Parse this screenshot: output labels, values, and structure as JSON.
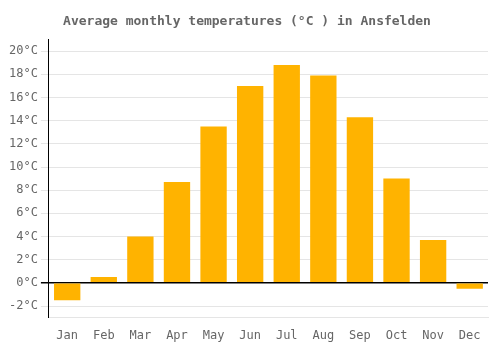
{
  "chart_data": {
    "type": "bar",
    "title": "Average monthly temperatures (°C ) in Ansfelden",
    "categories": [
      "Jan",
      "Feb",
      "Mar",
      "Apr",
      "May",
      "Jun",
      "Jul",
      "Aug",
      "Sep",
      "Oct",
      "Nov",
      "Dec"
    ],
    "values": [
      -1.5,
      0.5,
      4.0,
      8.7,
      13.5,
      17.0,
      18.8,
      17.9,
      14.3,
      9.0,
      3.7,
      -0.5
    ],
    "color": "#FFB300",
    "ylim": [
      -3,
      21
    ],
    "yticks": [
      {
        "value": -2,
        "label": "-2°C"
      },
      {
        "value": 0,
        "label": "0°C"
      },
      {
        "value": 2,
        "label": "2°C"
      },
      {
        "value": 4,
        "label": "4°C"
      },
      {
        "value": 6,
        "label": "6°C"
      },
      {
        "value": 8,
        "label": "8°C"
      },
      {
        "value": 10,
        "label": "10°C"
      },
      {
        "value": 12,
        "label": "12°C"
      },
      {
        "value": 14,
        "label": "14°C"
      },
      {
        "value": 16,
        "label": "16°C"
      },
      {
        "value": 18,
        "label": "18°C"
      },
      {
        "value": 20,
        "label": "20°C"
      }
    ],
    "grid": true
  }
}
